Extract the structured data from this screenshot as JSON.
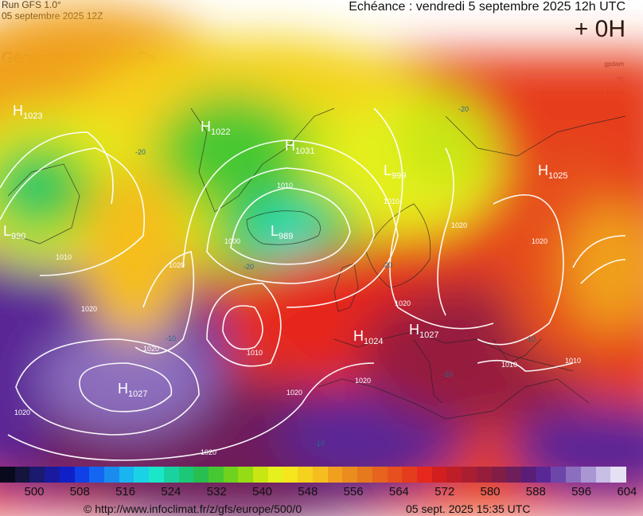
{
  "header": {
    "run": "Run GFS 1.0°",
    "run_date": "05 septembre 2025 12Z",
    "echeance": "Echéance : vendredi 5 septembre 2025 12h UTC",
    "offset": "+ 0H"
  },
  "fields": {
    "line1": "Géopotentiel à 500hPa",
    "line2": "Température à 500hPa",
    "line3": "Pression au niveau de la mer"
  },
  "units": {
    "gpdam": "gpdam",
    "celsius": "°C",
    "range": "[Max 1031.1 | Min 989.1] hPa"
  },
  "pressure_centres": [
    {
      "type": "H",
      "value": "1023"
    },
    {
      "type": "H",
      "value": "1022"
    },
    {
      "type": "H",
      "value": "1031"
    },
    {
      "type": "L",
      "value": "999"
    },
    {
      "type": "H",
      "value": "1025"
    },
    {
      "type": "L",
      "value": "990"
    },
    {
      "type": "L",
      "value": "989"
    },
    {
      "type": "H",
      "value": "1024"
    },
    {
      "type": "H",
      "value": "1027"
    },
    {
      "type": "H",
      "value": "1027"
    }
  ],
  "isobar_labels": [
    "1010",
    "1020",
    "1000",
    "1010",
    "1020",
    "1020",
    "1020",
    "1010",
    "1020",
    "1010",
    "1020",
    "1020",
    "1020",
    "1010",
    "1010",
    "1020",
    "1020"
  ],
  "temp_labels": [
    "-20",
    "-20",
    "-10",
    "-20",
    "-10",
    "-10",
    "-20",
    "-10"
  ],
  "scale": {
    "labels": [
      "500",
      "508",
      "516",
      "524",
      "532",
      "540",
      "548",
      "556",
      "564",
      "572",
      "580",
      "588",
      "596",
      "604"
    ],
    "colors": [
      "#0a0a1e",
      "#14143c",
      "#1a1a6e",
      "#1a1a9e",
      "#1020c8",
      "#1040e6",
      "#1466f0",
      "#1a8cf0",
      "#1ab4f0",
      "#1ad2e6",
      "#1ae6c8",
      "#1ad2a0",
      "#1ac878",
      "#28be50",
      "#46c832",
      "#6ed21e",
      "#96dc14",
      "#c8e614",
      "#e6f01e",
      "#f5e61e",
      "#f5d21e",
      "#f5be1e",
      "#f0a01e",
      "#eb8c1e",
      "#e6781e",
      "#e6641e",
      "#e6501e",
      "#e63c1e",
      "#e6281e",
      "#d21e1e",
      "#be1e28",
      "#aa1e32",
      "#961e3c",
      "#821e46",
      "#6e1e5a",
      "#5a1e78",
      "#5a2896",
      "#6e46aa",
      "#8c6ebe",
      "#aa96d2",
      "#c8bee6",
      "#e6e0f5"
    ]
  },
  "footer": {
    "source": "© http://www.infoclimat.fr/z/gfs/europe/500/0",
    "generated": "05 sept. 2025 15:35 UTC"
  }
}
